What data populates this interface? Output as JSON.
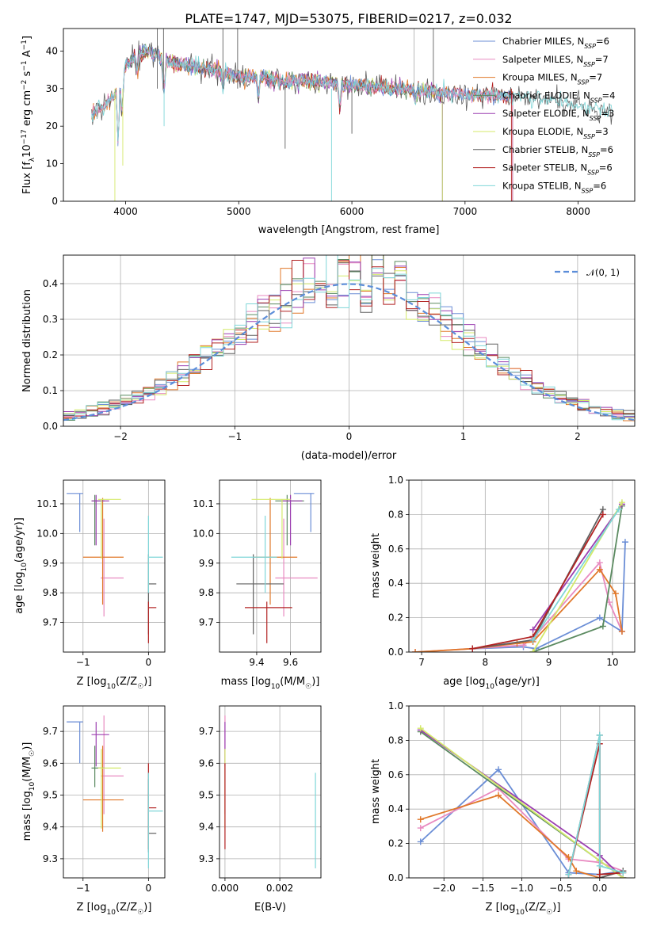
{
  "figure_title": "PLATE=1747, MJD=53075, FIBERID=0217, z=0.032",
  "colors": {
    "Chabrier MILES": "#6b8ed6",
    "Salpeter MILES": "#e88ac0",
    "Kroupa MILES": "#e0782a",
    "Chabrier ELODIE": "#5b8a60",
    "Salpeter ELODIE": "#9b3fb0",
    "Kroupa ELODIE": "#d4ea6a",
    "Chabrier STELIB": "#606060",
    "Salpeter STELIB": "#b22222",
    "Kroupa STELIB": "#7fd6d8",
    "normal": "#5b8dd9"
  },
  "chart_data": [
    {
      "id": "spectrum",
      "type": "line",
      "xlabel": "wavelength [Angstrom, rest frame]",
      "ylabel_base": "Flux [f",
      "ylabel_sub": "λ",
      "ylabel_mid": "10",
      "ylabel_sup": "−17",
      "ylabel_tail": " erg cm",
      "ylabel_sup2": "−2",
      "ylabel_tail2": " s",
      "ylabel_sup3": "−1",
      "ylabel_tail3": " A",
      "ylabel_sup4": "−1",
      "ylabel_end": "]",
      "xlim": [
        3450,
        8500
      ],
      "ylim": [
        0,
        46
      ],
      "xticks": [
        4000,
        5000,
        6000,
        7000,
        8000
      ],
      "yticks": [
        0,
        10,
        20,
        30,
        40
      ],
      "grid": false,
      "legend_position": "top-right",
      "continuum": [
        [
          3700,
          23
        ],
        [
          3800,
          25
        ],
        [
          3900,
          28
        ],
        [
          4000,
          36
        ],
        [
          4100,
          39
        ],
        [
          4200,
          40
        ],
        [
          4400,
          37
        ],
        [
          4600,
          36
        ],
        [
          4800,
          35
        ],
        [
          5000,
          33
        ],
        [
          5200,
          33
        ],
        [
          5400,
          32
        ],
        [
          5600,
          32
        ],
        [
          5800,
          31.5
        ],
        [
          6000,
          31
        ],
        [
          6200,
          30.5
        ],
        [
          6400,
          30
        ],
        [
          6600,
          29.5
        ],
        [
          6800,
          29
        ],
        [
          7000,
          28.5
        ],
        [
          7200,
          28
        ],
        [
          7400,
          28
        ],
        [
          7600,
          27.5
        ],
        [
          7800,
          26.5
        ],
        [
          8000,
          25.5
        ],
        [
          8200,
          24.5
        ],
        [
          8300,
          24
        ]
      ],
      "series": [
        {
          "name": "Chabrier MILES",
          "nssp": "6"
        },
        {
          "name": "Salpeter MILES",
          "nssp": "7"
        },
        {
          "name": "Kroupa MILES",
          "nssp": "7"
        },
        {
          "name": "Chabrier ELODIE",
          "nssp": "4"
        },
        {
          "name": "Salpeter ELODIE",
          "nssp": "3"
        },
        {
          "name": "Kroupa ELODIE",
          "nssp": "3"
        },
        {
          "name": "Chabrier STELIB",
          "nssp": "6"
        },
        {
          "name": "Salpeter STELIB",
          "nssp": "6"
        },
        {
          "name": "Kroupa STELIB",
          "nssp": "6"
        }
      ],
      "legend_nssp_label": "N",
      "legend_nssp_sub": "SSP"
    },
    {
      "id": "residuals",
      "type": "histogram",
      "xlabel": "(data-model)/error",
      "ylabel": "Normed distribution",
      "xlim": [
        -2.5,
        2.5
      ],
      "ylim": [
        0,
        0.48
      ],
      "xticks": [
        -2,
        -1,
        0,
        1,
        2
      ],
      "yticks": [
        0.0,
        0.1,
        0.2,
        0.3,
        0.4
      ],
      "grid": true,
      "legend_position": "top-right",
      "normal_label": "𝒩(0, 1)",
      "bin_width": 0.1,
      "bin_start": -2.5
    },
    {
      "id": "age_vs_Z",
      "type": "errorbar",
      "xlabel": "Z [log10(Z/Z☉)]",
      "xlabel_parts": [
        "Z [log",
        "10",
        "(Z/Z",
        "☉",
        ")]"
      ],
      "ylabel_parts": [
        "age  [log",
        "10",
        "(age/yr)]"
      ],
      "xlim": [
        -1.3,
        0.25
      ],
      "ylim": [
        9.6,
        10.18
      ],
      "xticks": [
        -1,
        0
      ],
      "yticks": [
        9.7,
        9.8,
        9.9,
        10.0,
        10.1
      ],
      "grid": true,
      "points": [
        {
          "series": "Chabrier MILES",
          "x": -1.05,
          "xerr": [
            0.2,
            0.05
          ],
          "y": 10.135,
          "yerr": [
            0.13,
            0.0
          ]
        },
        {
          "series": "Salpeter MILES",
          "x": -0.68,
          "xerr": [
            0.05,
            0.3
          ],
          "y": 9.85,
          "yerr": [
            0.13,
            0.2
          ]
        },
        {
          "series": "Kroupa MILES",
          "x": -0.7,
          "xerr": [
            0.3,
            0.32
          ],
          "y": 9.92,
          "yerr": [
            0.16,
            0.2
          ]
        },
        {
          "series": "Chabrier ELODIE",
          "x": -0.82,
          "xerr": [
            0.05,
            0.15
          ],
          "y": 10.11,
          "yerr": [
            0.15,
            0.02
          ]
        },
        {
          "series": "Salpeter ELODIE",
          "x": -0.8,
          "xerr": [
            0.07,
            0.2
          ],
          "y": 10.11,
          "yerr": [
            0.15,
            0.02
          ]
        },
        {
          "series": "Kroupa ELODIE",
          "x": -0.72,
          "xerr": [
            0.05,
            0.3
          ],
          "y": 10.115,
          "yerr": [
            0.2,
            0.0
          ]
        },
        {
          "series": "Chabrier STELIB",
          "x": 0.0,
          "xerr": [
            0.0,
            0.12
          ],
          "y": 9.83,
          "yerr": [
            0.17,
            0.1
          ]
        },
        {
          "series": "Salpeter STELIB",
          "x": 0.0,
          "xerr": [
            0.0,
            0.12
          ],
          "y": 9.75,
          "yerr": [
            0.12,
            0.02
          ]
        },
        {
          "series": "Kroupa STELIB",
          "x": 0.0,
          "xerr": [
            0.0,
            0.22
          ],
          "y": 9.92,
          "yerr": [
            0.12,
            0.14
          ]
        }
      ]
    },
    {
      "id": "age_vs_mass",
      "type": "errorbar",
      "xlabel_parts": [
        "mass [log",
        "10",
        "(M/M",
        "☉",
        ")]"
      ],
      "xlim": [
        9.18,
        9.78
      ],
      "ylim": [
        9.6,
        10.18
      ],
      "xticks": [
        9.4,
        9.6
      ],
      "yticks": [
        9.7,
        9.8,
        9.9,
        10.0,
        10.1
      ],
      "grid": true,
      "points": [
        {
          "series": "Chabrier MILES",
          "x": 9.72,
          "xerr": [
            0.1,
            0.02
          ],
          "y": 10.135,
          "yerr": [
            0.13,
            0.0
          ]
        },
        {
          "series": "Salpeter MILES",
          "x": 9.56,
          "xerr": [
            0.05,
            0.2
          ],
          "y": 9.85,
          "yerr": [
            0.13,
            0.2
          ]
        },
        {
          "series": "Kroupa MILES",
          "x": 9.48,
          "xerr": [
            0.1,
            0.16
          ],
          "y": 9.92,
          "yerr": [
            0.16,
            0.2
          ]
        },
        {
          "series": "Chabrier ELODIE",
          "x": 9.58,
          "xerr": [
            0.07,
            0.1
          ],
          "y": 10.11,
          "yerr": [
            0.15,
            0.02
          ]
        },
        {
          "series": "Salpeter ELODIE",
          "x": 9.6,
          "xerr": [
            0.05,
            0.07
          ],
          "y": 10.11,
          "yerr": [
            0.15,
            0.02
          ]
        },
        {
          "series": "Kroupa ELODIE",
          "x": 9.55,
          "xerr": [
            0.18,
            0.05
          ],
          "y": 10.115,
          "yerr": [
            0.2,
            0.0
          ]
        },
        {
          "series": "Chabrier STELIB",
          "x": 9.38,
          "xerr": [
            0.1,
            0.18
          ],
          "y": 9.83,
          "yerr": [
            0.17,
            0.1
          ]
        },
        {
          "series": "Salpeter STELIB",
          "x": 9.46,
          "xerr": [
            0.13,
            0.15
          ],
          "y": 9.75,
          "yerr": [
            0.12,
            0.02
          ]
        },
        {
          "series": "Kroupa STELIB",
          "x": 9.45,
          "xerr": [
            0.2,
            0.07
          ],
          "y": 9.92,
          "yerr": [
            0.12,
            0.14
          ]
        }
      ]
    },
    {
      "id": "weight_vs_age",
      "type": "line",
      "xlabel_parts": [
        "age  [log",
        "10",
        "(age/yr)]"
      ],
      "ylabel": "mass weight",
      "xlim": [
        6.8,
        10.35
      ],
      "ylim": [
        0,
        1.0
      ],
      "xticks": [
        7,
        8,
        9,
        10
      ],
      "yticks": [
        0.0,
        0.2,
        0.4,
        0.6,
        0.8,
        1.0
      ],
      "grid": true,
      "series": [
        {
          "name": "Chabrier MILES",
          "x": [
            7.8,
            8.6,
            8.8,
            9.8,
            10.15,
            10.2
          ],
          "y": [
            0.02,
            0.03,
            0.02,
            0.2,
            0.12,
            0.64
          ]
        },
        {
          "name": "Salpeter MILES",
          "x": [
            6.9,
            7.8,
            8.6,
            8.8,
            9.8,
            9.95,
            10.15
          ],
          "y": [
            0.0,
            0.02,
            0.04,
            0.1,
            0.52,
            0.29,
            0.12
          ]
        },
        {
          "name": "Kroupa MILES",
          "x": [
            6.9,
            7.8,
            8.5,
            8.75,
            9.8,
            10.05,
            10.15
          ],
          "y": [
            0.0,
            0.02,
            0.05,
            0.06,
            0.48,
            0.34,
            0.12
          ]
        },
        {
          "name": "Chabrier ELODIE",
          "x": [
            8.75,
            9.85,
            10.15
          ],
          "y": [
            0.0,
            0.15,
            0.85
          ]
        },
        {
          "name": "Salpeter ELODIE",
          "x": [
            8.75,
            10.15
          ],
          "y": [
            0.13,
            0.86
          ]
        },
        {
          "name": "Kroupa ELODIE",
          "x": [
            8.75,
            10.15
          ],
          "y": [
            0.0,
            0.87
          ]
        },
        {
          "name": "Chabrier STELIB",
          "x": [
            7.8,
            8.75,
            9.85
          ],
          "y": [
            0.02,
            0.07,
            0.83
          ]
        },
        {
          "name": "Salpeter STELIB",
          "x": [
            7.8,
            8.75,
            9.85
          ],
          "y": [
            0.02,
            0.09,
            0.8
          ]
        },
        {
          "name": "Kroupa STELIB",
          "x": [
            8.75,
            10.1
          ],
          "y": [
            0.07,
            0.83
          ]
        }
      ]
    },
    {
      "id": "mass_vs_Z",
      "type": "errorbar",
      "xlabel_parts": [
        "Z [log",
        "10",
        "(Z/Z",
        "☉",
        ")]"
      ],
      "ylabel_parts": [
        "mass [log",
        "10",
        "(M/M",
        "☉",
        ")]"
      ],
      "xlim": [
        -1.3,
        0.25
      ],
      "ylim": [
        9.24,
        9.78
      ],
      "xticks": [
        -1,
        0
      ],
      "yticks": [
        9.3,
        9.4,
        9.5,
        9.6,
        9.7
      ],
      "grid": true,
      "points": [
        {
          "series": "Chabrier MILES",
          "x": -1.05,
          "xerr": [
            0.2,
            0.05
          ],
          "y": 9.73,
          "yerr": [
            0.13,
            0.0
          ]
        },
        {
          "series": "Salpeter MILES",
          "x": -0.68,
          "xerr": [
            0.05,
            0.3
          ],
          "y": 9.56,
          "yerr": [
            0.12,
            0.19
          ]
        },
        {
          "series": "Kroupa MILES",
          "x": -0.7,
          "xerr": [
            0.3,
            0.32
          ],
          "y": 9.485,
          "yerr": [
            0.1,
            0.17
          ]
        },
        {
          "series": "Chabrier ELODIE",
          "x": -0.82,
          "xerr": [
            0.05,
            0.15
          ],
          "y": 9.585,
          "yerr": [
            0.06,
            0.07
          ]
        },
        {
          "series": "Salpeter ELODIE",
          "x": -0.8,
          "xerr": [
            0.07,
            0.2
          ],
          "y": 9.69,
          "yerr": [
            0.1,
            0.04
          ]
        },
        {
          "series": "Kroupa ELODIE",
          "x": -0.72,
          "xerr": [
            0.05,
            0.3
          ],
          "y": 9.585,
          "yerr": [
            0.19,
            0.06
          ]
        },
        {
          "series": "Chabrier STELIB",
          "x": 0.0,
          "xerr": [
            0.0,
            0.12
          ],
          "y": 9.38,
          "yerr": [
            0.06,
            0.17
          ]
        },
        {
          "series": "Salpeter STELIB",
          "x": 0.0,
          "xerr": [
            0.0,
            0.12
          ],
          "y": 9.46,
          "yerr": [
            0.13,
            0.14
          ]
        },
        {
          "series": "Kroupa STELIB",
          "x": 0.0,
          "xerr": [
            0.0,
            0.22
          ],
          "y": 9.45,
          "yerr": [
            0.18,
            0.12
          ]
        }
      ]
    },
    {
      "id": "mass_vs_ebv",
      "type": "errorbar",
      "xlabel": "E(B-V)",
      "xlim": [
        -0.0002,
        0.0035
      ],
      "ylim": [
        9.24,
        9.78
      ],
      "xticks": [
        0.0,
        0.002
      ],
      "xtick_labels": [
        "0.000",
        "0.002"
      ],
      "yticks": [
        9.3,
        9.4,
        9.5,
        9.6,
        9.7
      ],
      "grid": true,
      "points": [
        {
          "series": "Salpeter MILES",
          "x": 0.0,
          "xerr": [
            0,
            0
          ],
          "y": 9.56,
          "yerr": [
            0.12,
            0.19
          ]
        },
        {
          "series": "Salpeter ELODIE",
          "x": 0.0,
          "xerr": [
            0,
            0
          ],
          "y": 9.69,
          "yerr": [
            0.1,
            0.04
          ]
        },
        {
          "series": "Kroupa ELODIE",
          "x": 0.0,
          "xerr": [
            0,
            0
          ],
          "y": 9.585,
          "yerr": [
            0.19,
            0.06
          ]
        },
        {
          "series": "Salpeter STELIB",
          "x": 0.0,
          "xerr": [
            0,
            0
          ],
          "y": 9.46,
          "yerr": [
            0.13,
            0.14
          ]
        },
        {
          "series": "Kroupa STELIB",
          "x": 0.0033,
          "xerr": [
            0,
            0
          ],
          "y": 9.42,
          "yerr": [
            0.15,
            0.15
          ]
        }
      ]
    },
    {
      "id": "weight_vs_Z",
      "type": "line",
      "xlabel_parts": [
        "Z [log",
        "10",
        "(Z/Z",
        "☉",
        ")]"
      ],
      "ylabel": "mass weight",
      "xlim": [
        -2.45,
        0.45
      ],
      "ylim": [
        0,
        1.0
      ],
      "xticks": [
        -2.0,
        -1.5,
        -1.0,
        -0.5,
        0.0
      ],
      "xtick_labels": [
        "−2.0",
        "−1.5",
        "−1.0",
        "−0.5",
        "0.0"
      ],
      "yticks": [
        0.0,
        0.2,
        0.4,
        0.6,
        0.8,
        1.0
      ],
      "grid": true,
      "series": [
        {
          "name": "Chabrier MILES",
          "x": [
            -2.3,
            -1.3,
            -0.4,
            0.0,
            0.3
          ],
          "y": [
            0.21,
            0.63,
            0.03,
            0.02,
            0.04
          ]
        },
        {
          "name": "Salpeter MILES",
          "x": [
            -2.3,
            -1.3,
            -0.4,
            0.0,
            0.3
          ],
          "y": [
            0.29,
            0.52,
            0.11,
            0.09,
            0.04
          ]
        },
        {
          "name": "Kroupa MILES",
          "x": [
            -2.3,
            -1.3,
            -0.4,
            -0.3,
            0.0,
            0.3
          ],
          "y": [
            0.34,
            0.48,
            0.12,
            0.04,
            0.0,
            0.04
          ]
        },
        {
          "name": "Chabrier ELODIE",
          "x": [
            -2.3,
            0.0,
            0.3
          ],
          "y": [
            0.85,
            0.1,
            0.0
          ]
        },
        {
          "name": "Salpeter ELODIE",
          "x": [
            -2.3,
            0.0,
            0.3
          ],
          "y": [
            0.86,
            0.13,
            0.0
          ]
        },
        {
          "name": "Kroupa ELODIE",
          "x": [
            -2.3,
            0.0,
            0.3
          ],
          "y": [
            0.87,
            0.1,
            0.0
          ]
        },
        {
          "name": "Chabrier STELIB",
          "x": [
            -0.4,
            0.0,
            0.0,
            0.3
          ],
          "y": [
            0.02,
            0.83,
            0.0,
            0.04
          ]
        },
        {
          "name": "Salpeter STELIB",
          "x": [
            -0.4,
            0.0,
            0.0,
            0.3
          ],
          "y": [
            0.02,
            0.78,
            0.02,
            0.03
          ]
        },
        {
          "name": "Kroupa STELIB",
          "x": [
            -0.4,
            0.0,
            0.0,
            0.3
          ],
          "y": [
            0.02,
            0.83,
            0.07,
            0.03
          ]
        }
      ]
    }
  ]
}
